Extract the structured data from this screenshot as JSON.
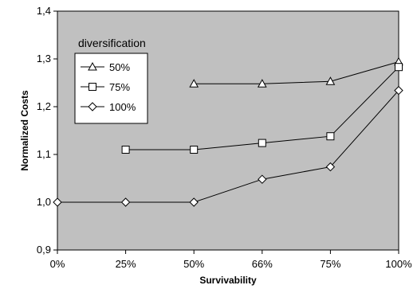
{
  "chart_data": {
    "type": "line",
    "title": "",
    "xlabel": "Survivability",
    "ylabel": "Normalized Costs",
    "categories": [
      "0%",
      "25%",
      "50%",
      "66%",
      "75%",
      "100%"
    ],
    "ylim": [
      0.9,
      1.4
    ],
    "yticks": [
      "0,9",
      "1,0",
      "1,1",
      "1,2",
      "1,3",
      "1,4"
    ],
    "grid": false,
    "legend": {
      "title": "diversification",
      "placement": "top-left"
    },
    "series": [
      {
        "name": "50%",
        "marker": "triangle",
        "values": [
          null,
          null,
          1.248,
          1.248,
          1.253,
          1.294
        ]
      },
      {
        "name": "75%",
        "marker": "square",
        "values": [
          null,
          1.11,
          1.11,
          1.124,
          1.138,
          1.283
        ]
      },
      {
        "name": "100%",
        "marker": "diamond",
        "values": [
          1.0,
          1.0,
          1.0,
          1.048,
          1.074,
          1.234
        ]
      }
    ],
    "colors": {
      "plot_background": "#c0c0c0",
      "line": "#000000",
      "marker_fill": "#ffffff",
      "legend_background": "#ffffff"
    }
  }
}
